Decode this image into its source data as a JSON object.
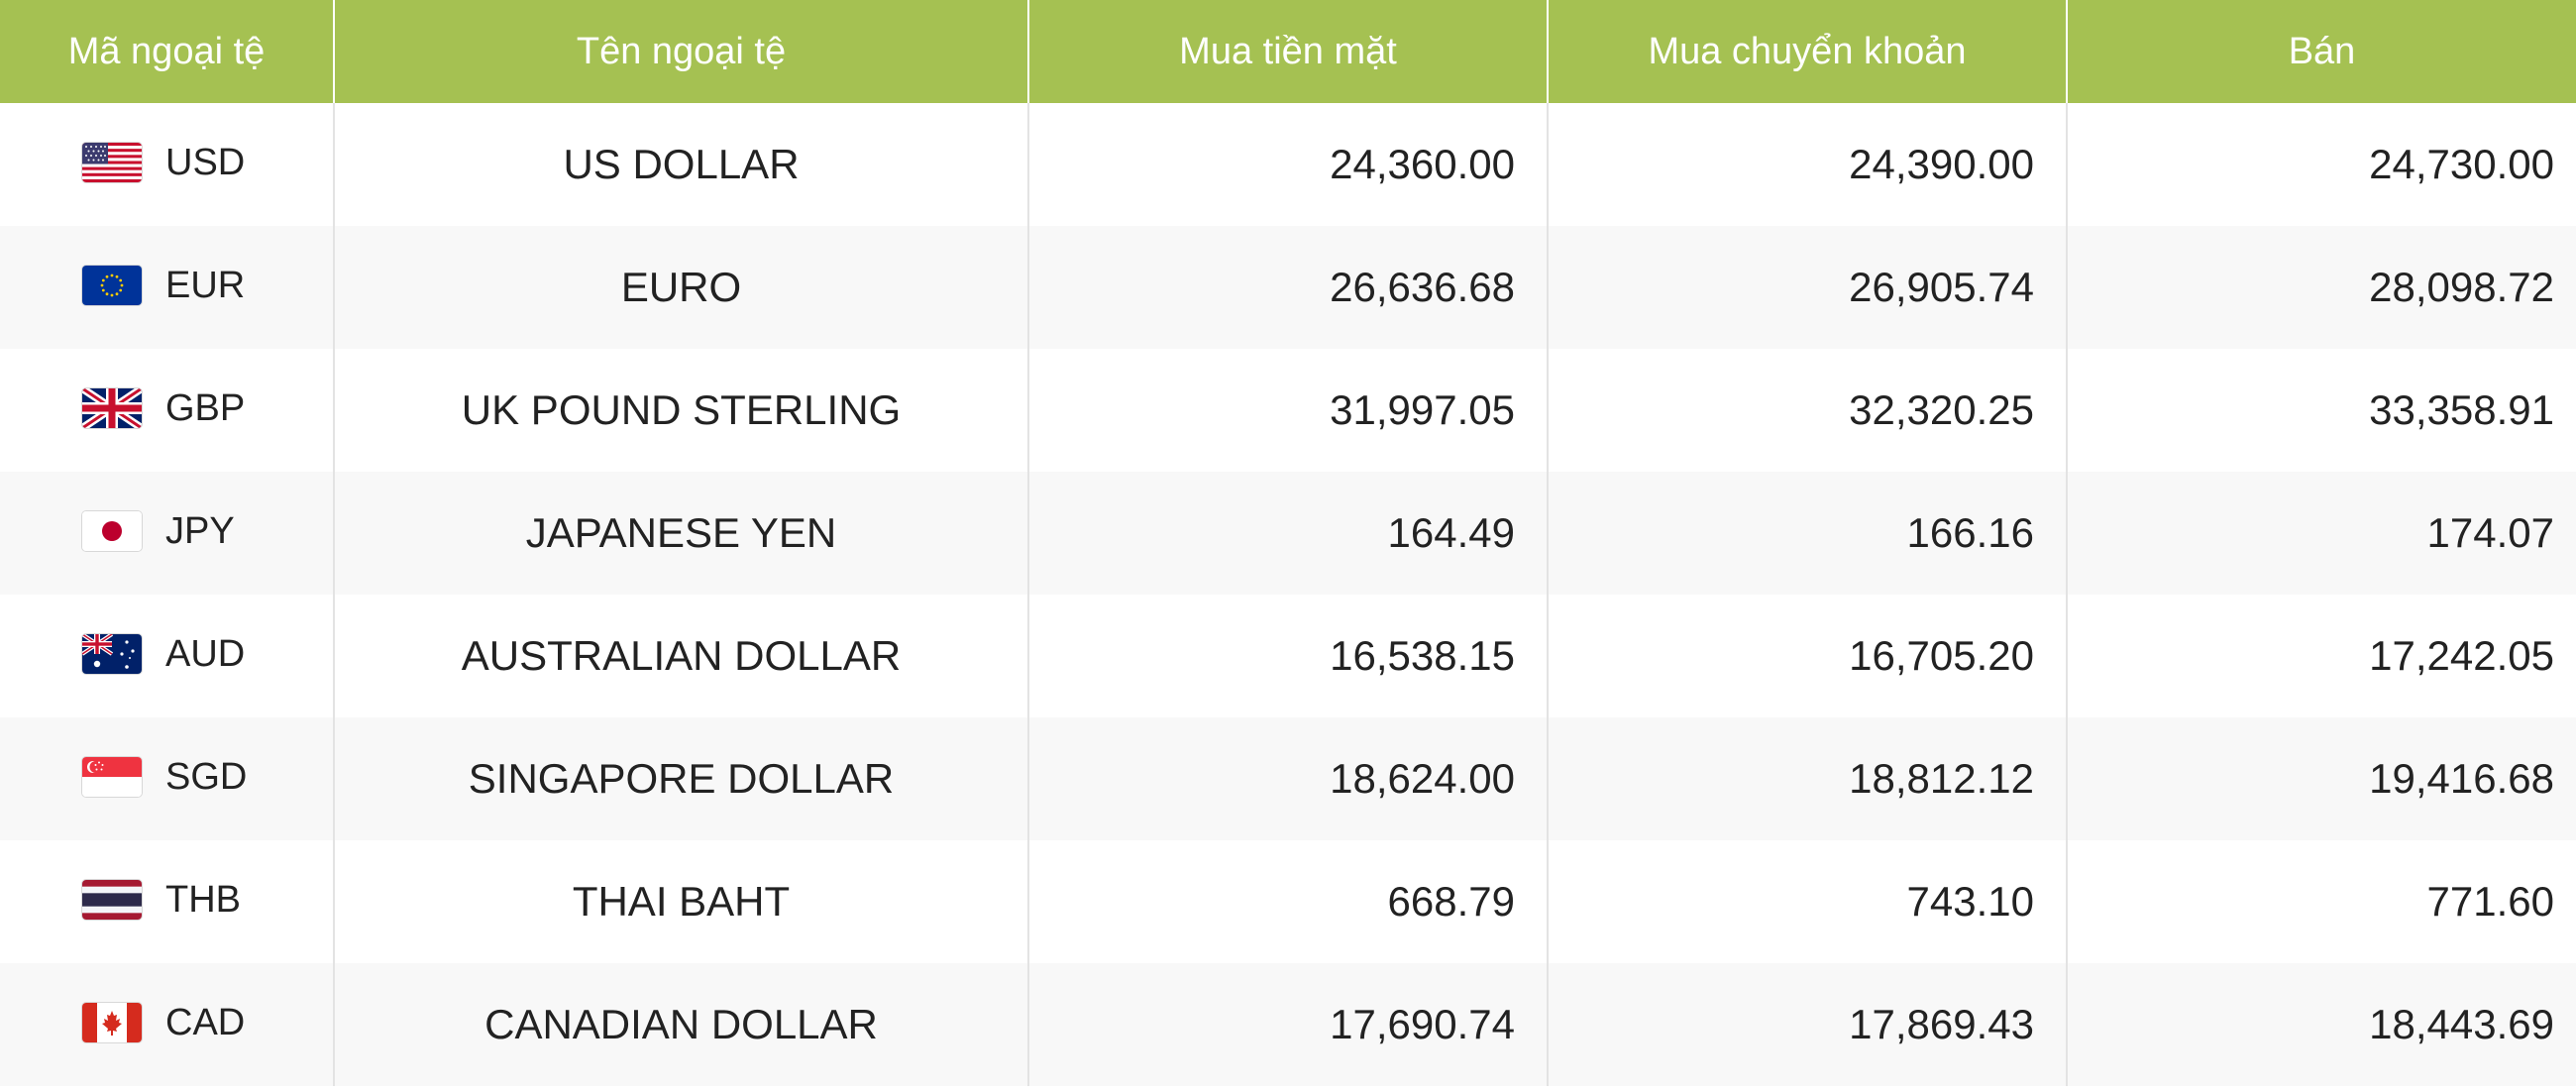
{
  "table": {
    "headers": {
      "code": "Mã ngoại tệ",
      "name": "Tên ngoại tệ",
      "buy_cash": "Mua tiền mặt",
      "buy_transfer": "Mua chuyển khoản",
      "sell": "Bán"
    },
    "colors": {
      "header_bg": "#a5c152",
      "header_text": "#ffffff",
      "row_alt_bg": "#f8f8f8"
    },
    "rows": [
      {
        "flag_icon": "us-flag-icon",
        "code": "USD",
        "name": "US DOLLAR",
        "buy_cash": "24,360.00",
        "buy_transfer": "24,390.00",
        "sell": "24,730.00"
      },
      {
        "flag_icon": "eu-flag-icon",
        "code": "EUR",
        "name": "EURO",
        "buy_cash": "26,636.68",
        "buy_transfer": "26,905.74",
        "sell": "28,098.72"
      },
      {
        "flag_icon": "uk-flag-icon",
        "code": "GBP",
        "name": "UK POUND STERLING",
        "buy_cash": "31,997.05",
        "buy_transfer": "32,320.25",
        "sell": "33,358.91"
      },
      {
        "flag_icon": "japan-flag-icon",
        "code": "JPY",
        "name": "JAPANESE YEN",
        "buy_cash": "164.49",
        "buy_transfer": "166.16",
        "sell": "174.07"
      },
      {
        "flag_icon": "australia-flag-icon",
        "code": "AUD",
        "name": "AUSTRALIAN DOLLAR",
        "buy_cash": "16,538.15",
        "buy_transfer": "16,705.20",
        "sell": "17,242.05"
      },
      {
        "flag_icon": "singapore-flag-icon",
        "code": "SGD",
        "name": "SINGAPORE DOLLAR",
        "buy_cash": "18,624.00",
        "buy_transfer": "18,812.12",
        "sell": "19,416.68"
      },
      {
        "flag_icon": "thailand-flag-icon",
        "code": "THB",
        "name": "THAI BAHT",
        "buy_cash": "668.79",
        "buy_transfer": "743.10",
        "sell": "771.60"
      },
      {
        "flag_icon": "canada-flag-icon",
        "code": "CAD",
        "name": "CANADIAN DOLLAR",
        "buy_cash": "17,690.74",
        "buy_transfer": "17,869.43",
        "sell": "18,443.69"
      }
    ]
  }
}
